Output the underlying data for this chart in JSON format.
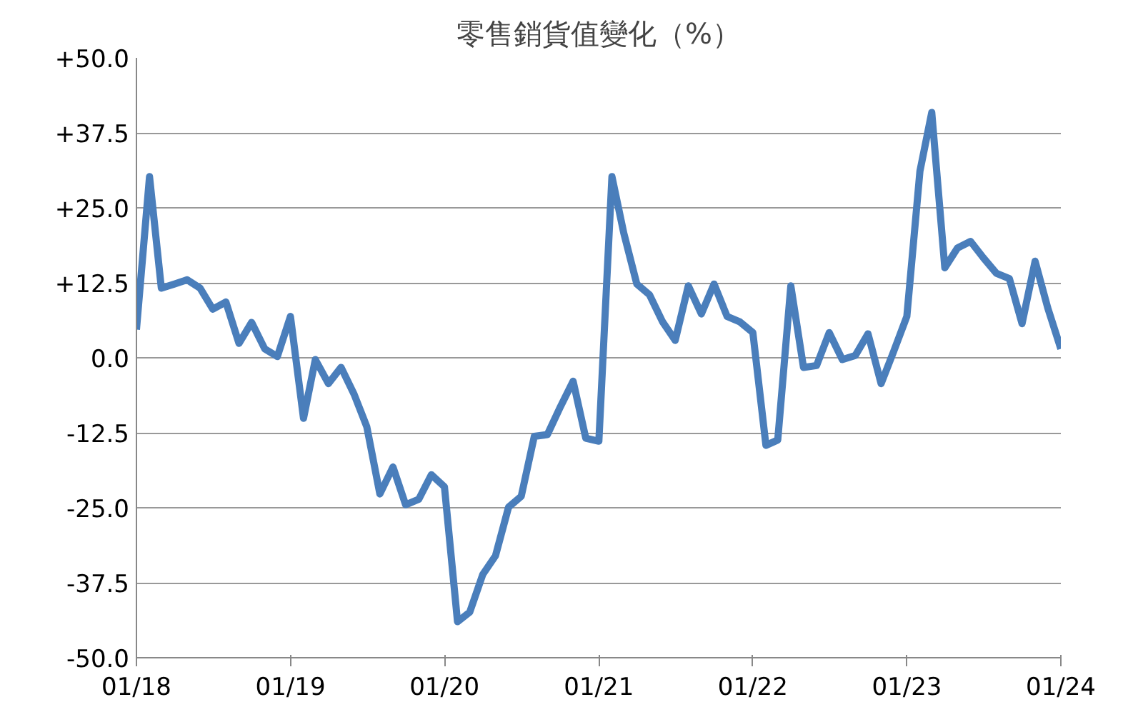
{
  "chart_data": {
    "type": "line",
    "title": "零售銷貨值變化（%）",
    "x": [
      "2018-01",
      "2018-02",
      "2018-03",
      "2018-04",
      "2018-05",
      "2018-06",
      "2018-07",
      "2018-08",
      "2018-09",
      "2018-10",
      "2018-11",
      "2018-12",
      "2019-01",
      "2019-02",
      "2019-03",
      "2019-04",
      "2019-05",
      "2019-06",
      "2019-07",
      "2019-08",
      "2019-09",
      "2019-10",
      "2019-11",
      "2019-12",
      "2020-01",
      "2020-02",
      "2020-03",
      "2020-04",
      "2020-05",
      "2020-06",
      "2020-07",
      "2020-08",
      "2020-09",
      "2020-10",
      "2020-11",
      "2020-12",
      "2021-01",
      "2021-02",
      "2021-03",
      "2021-04",
      "2021-05",
      "2021-06",
      "2021-07",
      "2021-08",
      "2021-09",
      "2021-10",
      "2021-11",
      "2021-12",
      "2022-01",
      "2022-02",
      "2022-03",
      "2022-04",
      "2022-05",
      "2022-06",
      "2022-07",
      "2022-08",
      "2022-09",
      "2022-10",
      "2022-11",
      "2022-12",
      "2023-01",
      "2023-02",
      "2023-03",
      "2023-04",
      "2023-05",
      "2023-06",
      "2023-07",
      "2023-08",
      "2023-09",
      "2023-10",
      "2023-11",
      "2023-12",
      "2024-01"
    ],
    "series": [
      {
        "color": "#4a7ebb",
        "values": [
          4.7,
          30.2,
          11.6,
          12.3,
          13.0,
          11.6,
          8.1,
          9.3,
          2.4,
          5.9,
          1.5,
          0.2,
          6.9,
          -10.1,
          -0.3,
          -4.3,
          -1.6,
          -6.1,
          -11.5,
          -22.7,
          -18.2,
          -24.5,
          -23.6,
          -19.5,
          -21.5,
          -44.0,
          -42.4,
          -36.1,
          -33.0,
          -24.9,
          -23.1,
          -13.1,
          -12.8,
          -8.3,
          -3.9,
          -13.4,
          -13.9,
          30.2,
          20.8,
          12.3,
          10.5,
          6.0,
          2.9,
          12.0,
          7.3,
          12.3,
          6.9,
          6.0,
          4.2,
          -14.6,
          -13.7,
          12.0,
          -1.6,
          -1.3,
          4.2,
          -0.3,
          0.4,
          4.0,
          -4.3,
          1.1,
          6.9,
          31.1,
          40.9,
          15.0,
          18.3,
          19.4,
          16.7,
          14.1,
          13.2,
          5.7,
          16.1,
          8.3,
          1.5
        ]
      }
    ],
    "xlim": [
      "2018-01",
      "2024-01"
    ],
    "xticks": [
      {
        "value": "2018-01",
        "label": "01/18"
      },
      {
        "value": "2019-01",
        "label": "01/19"
      },
      {
        "value": "2020-01",
        "label": "01/20"
      },
      {
        "value": "2021-01",
        "label": "01/21"
      },
      {
        "value": "2022-01",
        "label": "01/22"
      },
      {
        "value": "2023-01",
        "label": "01/23"
      },
      {
        "value": "2024-01",
        "label": "01/24"
      }
    ],
    "ylim": [
      -50,
      50
    ],
    "yticks": [
      {
        "value": -50,
        "label": "-50.0"
      },
      {
        "value": -37.5,
        "label": "-37.5"
      },
      {
        "value": -25,
        "label": "-25.0"
      },
      {
        "value": -12.5,
        "label": "-12.5"
      },
      {
        "value": 0,
        "label": "0.0"
      },
      {
        "value": 12.5,
        "label": "+12.5"
      },
      {
        "value": 25,
        "label": "+25.0"
      },
      {
        "value": 37.5,
        "label": "+37.5"
      },
      {
        "value": 50,
        "label": "+50.0"
      }
    ],
    "grid": "y",
    "line_style": "solid"
  }
}
